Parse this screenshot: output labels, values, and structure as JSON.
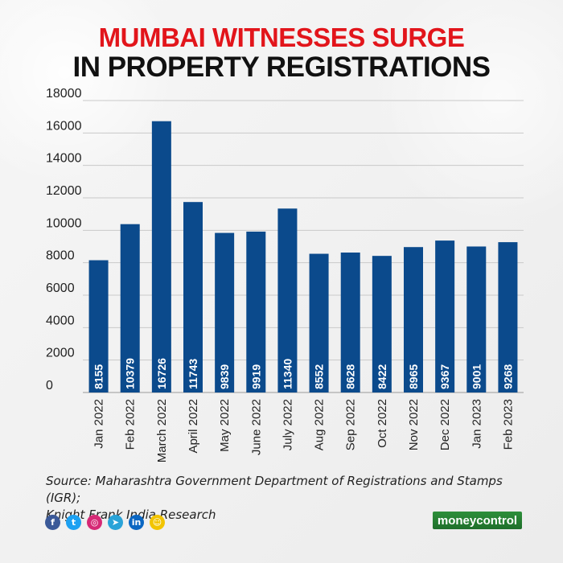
{
  "title": {
    "line1": "MUMBAI WITNESSES SURGE",
    "line2": "IN PROPERTY REGISTRATIONS"
  },
  "colors": {
    "bar": "#0b4a8c",
    "title_accent": "#e2151b",
    "title_dark": "#111111",
    "grid": "#c9c9c9",
    "brand": "#2d8f3a"
  },
  "chart_data": {
    "type": "bar",
    "categories": [
      "Jan 2022",
      "Feb 2022",
      "March 2022",
      "April 2022",
      "May 2022",
      "June 2022",
      "July 2022",
      "Aug 2022",
      "Sep 2022",
      "Oct 2022",
      "Nov 2022",
      "Dec 2022",
      "Jan 2023",
      "Feb 2023"
    ],
    "values": [
      8155,
      10379,
      16726,
      11743,
      9839,
      9919,
      11340,
      8552,
      8628,
      8422,
      8965,
      9367,
      9001,
      9268
    ],
    "yticks": [
      0,
      2000,
      4000,
      6000,
      8000,
      10000,
      12000,
      14000,
      16000,
      18000
    ],
    "ylim": [
      0,
      18000
    ],
    "grid": true,
    "data_labels": "inside-bottom-rotated",
    "title": "MUMBAI WITNESSES SURGE IN PROPERTY REGISTRATIONS",
    "xlabel": "",
    "ylabel": ""
  },
  "source": {
    "line1": "Source: Maharashtra Government Department of Registrations and Stamps (IGR);",
    "line2": "Knight Frank India Research"
  },
  "social_icons": [
    {
      "name": "facebook-icon",
      "glyph": "f",
      "color": "#3b5998"
    },
    {
      "name": "twitter-icon",
      "glyph": "t",
      "color": "#1da1f2"
    },
    {
      "name": "instagram-icon",
      "glyph": "◎",
      "color": "#d62976"
    },
    {
      "name": "telegram-icon",
      "glyph": "➤",
      "color": "#2aa3d8"
    },
    {
      "name": "linkedin-icon",
      "glyph": "in",
      "color": "#0a66c2"
    },
    {
      "name": "snapchat-icon",
      "glyph": "☺",
      "color": "#f2c400"
    }
  ],
  "brand": {
    "part1": "money",
    "part2": "control"
  }
}
